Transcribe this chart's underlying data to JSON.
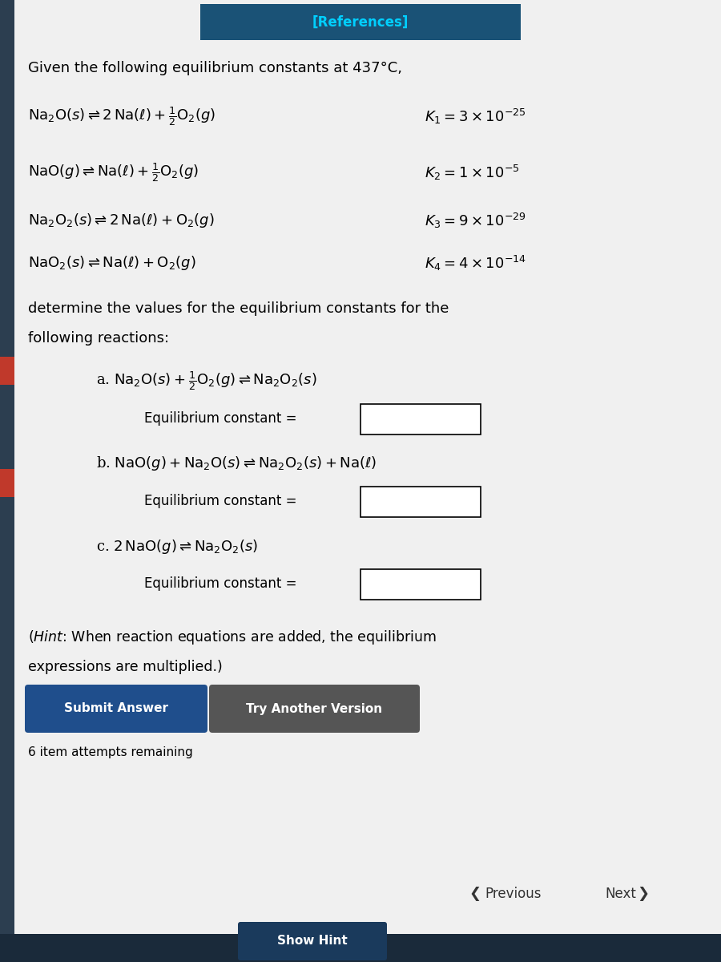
{
  "bg_color": "#d8d8d8",
  "content_bg": "#f0f0f0",
  "header_bg": "#1a5276",
  "header_text": "[References]",
  "header_text_color": "#00cfff",
  "title_text": "Given the following equilibrium constants at 437°C,",
  "eq_const_label": "Equilibrium constant =",
  "hint_text_1": "(Hint: When reaction equations are added, the equilibrium",
  "hint_text_2": "expressions are multiplied.)",
  "btn1_text": "Submit Answer",
  "btn1_color": "#1f4e8c",
  "btn2_text": "Try Another Version",
  "btn2_color": "#555555",
  "attempts_text": "6 item attempts remaining",
  "prev_text": "Previous",
  "next_text": "Next",
  "show_hint_text": "Show Hint",
  "show_hint_color": "#1a3a5c",
  "sidebar_color": "#2c3e50",
  "left_bar_color": "#c0392b",
  "bottom_bar_color": "#1a2a3a"
}
